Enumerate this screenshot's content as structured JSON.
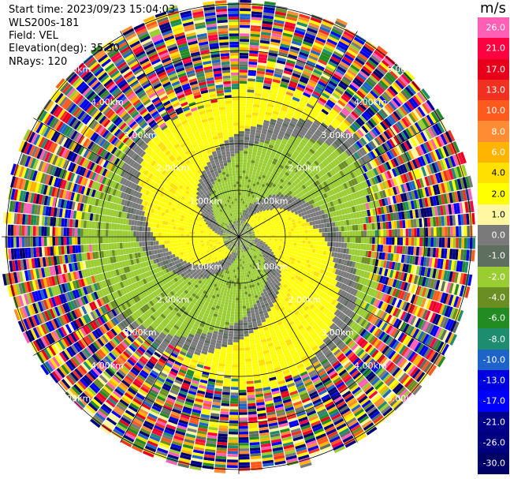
{
  "header": {
    "start_time": "Start time: 2023/09/23 15:04:03",
    "instrument": "WLS200s-181",
    "field": "Field: VEL",
    "elevation": "Elevation(deg): 35.30",
    "nrays": "NRays: 120"
  },
  "colorbar": {
    "unit": "m/s",
    "ticks": [
      "26.0",
      "21.0",
      "17.0",
      "13.0",
      "10.0",
      "8.0",
      "6.0",
      "4.0",
      "2.0",
      "1.0",
      "0.0",
      "-1.0",
      "-2.0",
      "-4.0",
      "-6.0",
      "-8.0",
      "-10.0",
      "-13.0",
      "-17.0",
      "-21.0",
      "-26.0",
      "-30.0"
    ],
    "colors": [
      "#ff5fb4",
      "#ff0040",
      "#e8001a",
      "#f03020",
      "#ff5a1e",
      "#ff8c32",
      "#ffb400",
      "#ffe000",
      "#ffff00",
      "#fff8a0",
      "#7a7a7a",
      "#5f6f5f",
      "#9acd32",
      "#6b8e23",
      "#228b22",
      "#1e8c6e",
      "#1e64c8",
      "#0000e0",
      "#0000ff",
      "#00008b",
      "#000080",
      "#000066"
    ]
  },
  "chart_data": {
    "type": "ppi",
    "title": "",
    "range_rings_km": [
      "1.00km",
      "2.00km",
      "3.00km",
      "4.00km",
      "5.00km"
    ],
    "series_field": "VEL",
    "units": "m/s",
    "n_rays": 120,
    "elevation_deg": 35.3,
    "vmin": -30.0,
    "vmax": 26.0,
    "signal_max_km": 3.5,
    "noise_start_km": 3.5,
    "max_range_km": 6.0
  }
}
